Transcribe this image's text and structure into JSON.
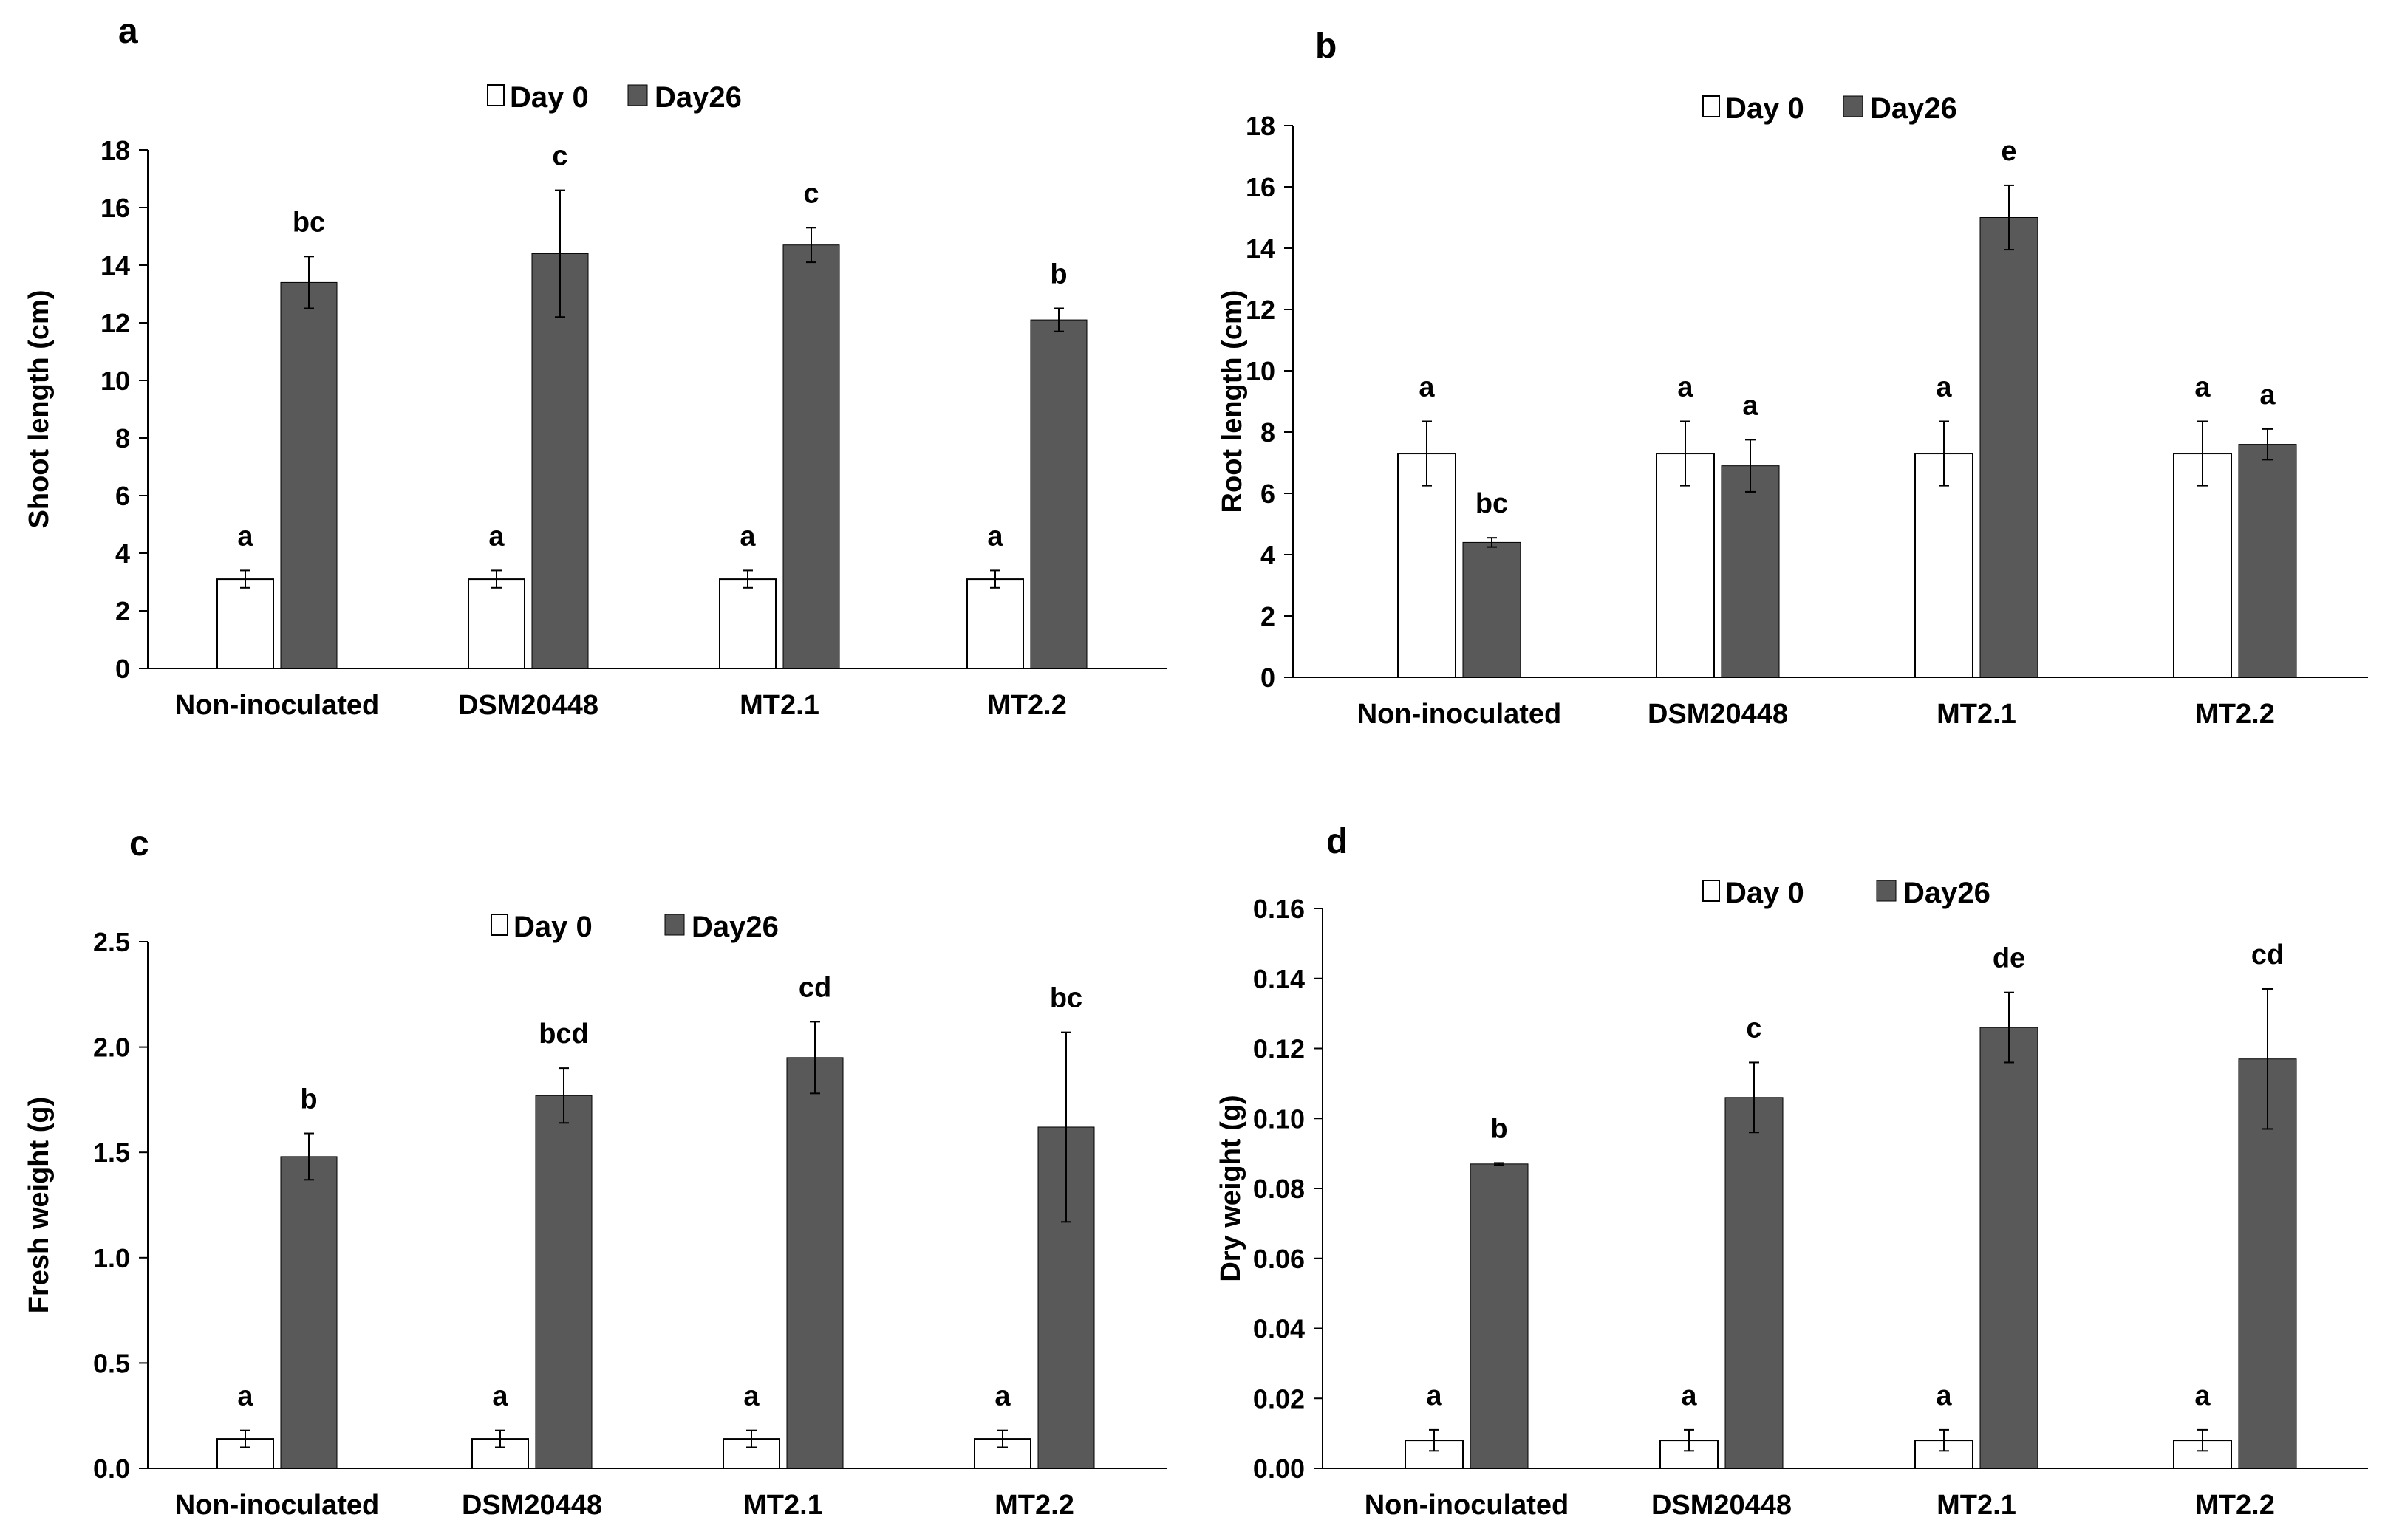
{
  "legend": {
    "day0": "Day 0",
    "day26": "Day26"
  },
  "colors": {
    "day0_fill": "#ffffff",
    "day26_fill": "#595959",
    "stroke": "#000000",
    "axis": "#000000"
  },
  "chart_data": [
    {
      "type": "bar",
      "panel": "a",
      "ylabel": "Shoot length (cm)",
      "xlabel": "",
      "ylim": [
        0,
        18
      ],
      "yticks": [
        0,
        2,
        4,
        6,
        8,
        10,
        12,
        14,
        16,
        18
      ],
      "ytick_labels": [
        "0",
        "2",
        "4",
        "6",
        "8",
        "10",
        "12",
        "14",
        "16",
        "18"
      ],
      "categories": [
        "Non-inoculated",
        "DSM20448",
        "MT2.1",
        "MT2.2"
      ],
      "series": [
        {
          "name": "Day 0",
          "values": [
            3.1,
            3.1,
            3.1,
            3.1
          ],
          "errors": [
            0.3,
            0.3,
            0.3,
            0.3
          ],
          "labels": [
            "a",
            "a",
            "a",
            "a"
          ]
        },
        {
          "name": "Day26",
          "values": [
            13.4,
            14.4,
            14.7,
            12.1
          ],
          "errors": [
            0.9,
            2.2,
            0.6,
            0.4
          ],
          "labels": [
            "bc",
            "c",
            "c",
            "b"
          ]
        }
      ]
    },
    {
      "type": "bar",
      "panel": "b",
      "ylabel": "Root length (cm)",
      "xlabel": "",
      "ylim": [
        0,
        18
      ],
      "yticks": [
        0,
        2,
        4,
        6,
        8,
        10,
        12,
        14,
        16,
        18
      ],
      "ytick_labels": [
        "0",
        "2",
        "4",
        "6",
        "8",
        "10",
        "12",
        "14",
        "16",
        "18"
      ],
      "categories": [
        "Non-inoculated",
        "DSM20448",
        "MT2.1",
        "MT2.2"
      ],
      "series": [
        {
          "name": "Day 0",
          "values": [
            7.3,
            7.3,
            7.3,
            7.3
          ],
          "errors": [
            1.05,
            1.05,
            1.05,
            1.05
          ],
          "labels": [
            "a",
            "a",
            "a",
            "a"
          ]
        },
        {
          "name": "Day26",
          "values": [
            4.4,
            6.9,
            15.0,
            7.6
          ],
          "errors": [
            0.15,
            0.85,
            1.05,
            0.5
          ],
          "labels": [
            "bc",
            "a",
            "e",
            "a"
          ]
        }
      ]
    },
    {
      "type": "bar",
      "panel": "c",
      "ylabel": "Fresh weight (g)",
      "xlabel": "",
      "ylim": [
        0,
        2.5
      ],
      "yticks": [
        0,
        0.5,
        1.0,
        1.5,
        2.0,
        2.5
      ],
      "ytick_labels": [
        "0.0",
        "0.5",
        "1.0",
        "1.5",
        "2.0",
        "2.5"
      ],
      "categories": [
        "Non-inoculated",
        "DSM20448",
        "MT2.1",
        "MT2.2"
      ],
      "series": [
        {
          "name": "Day 0",
          "values": [
            0.14,
            0.14,
            0.14,
            0.14
          ],
          "errors": [
            0.04,
            0.04,
            0.04,
            0.04
          ],
          "labels": [
            "a",
            "a",
            "a",
            "a"
          ]
        },
        {
          "name": "Day26",
          "values": [
            1.48,
            1.77,
            1.95,
            1.62
          ],
          "errors": [
            0.11,
            0.13,
            0.17,
            0.45
          ],
          "labels": [
            "b",
            "bcd",
            "cd",
            "bc"
          ]
        }
      ]
    },
    {
      "type": "bar",
      "panel": "d",
      "ylabel": "Dry weight (g)",
      "xlabel": "",
      "ylim": [
        0,
        0.16
      ],
      "yticks": [
        0,
        0.02,
        0.04,
        0.06,
        0.08,
        0.1,
        0.12,
        0.14,
        0.16
      ],
      "ytick_labels": [
        "0.00",
        "0.02",
        "0.04",
        "0.06",
        "0.08",
        "0.10",
        "0.12",
        "0.14",
        "0.16"
      ],
      "categories": [
        "Non-inoculated",
        "DSM20448",
        "MT2.1",
        "MT2.2"
      ],
      "series": [
        {
          "name": "Day 0",
          "values": [
            0.008,
            0.008,
            0.008,
            0.008
          ],
          "errors": [
            0.003,
            0.003,
            0.003,
            0.003
          ],
          "labels": [
            "a",
            "a",
            "a",
            "a"
          ]
        },
        {
          "name": "Day26",
          "values": [
            0.087,
            0.106,
            0.126,
            0.117
          ],
          "errors": [
            0.0003,
            0.01,
            0.01,
            0.02
          ],
          "labels": [
            "b",
            "c",
            "de",
            "cd"
          ]
        }
      ]
    }
  ]
}
